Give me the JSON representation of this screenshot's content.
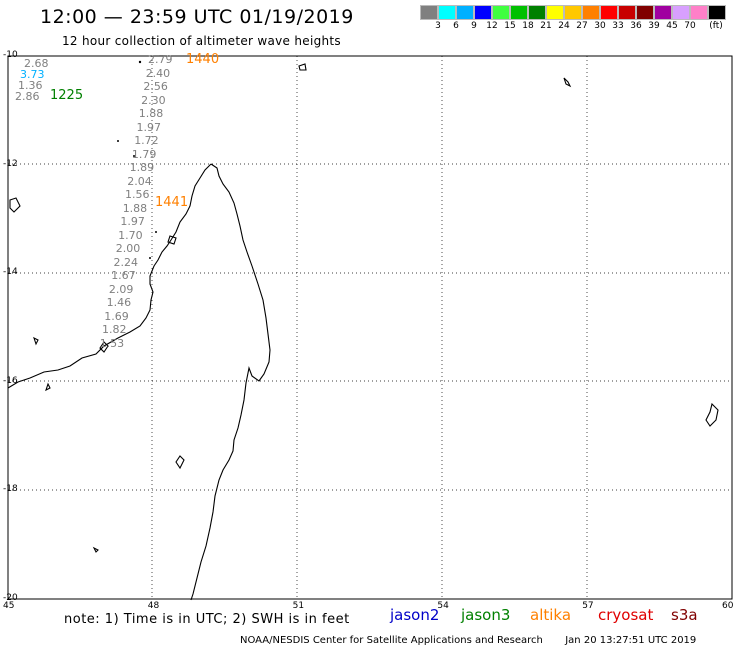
{
  "header": {
    "title": "12:00 — 23:59 UTC 01/19/2019",
    "subtitle": "12 hour collection of altimeter wave heights"
  },
  "colorbar": {
    "labels": [
      "3",
      "6",
      "9",
      "12",
      "15",
      "18",
      "21",
      "24",
      "27",
      "30",
      "33",
      "36",
      "39",
      "45",
      "70"
    ],
    "unit": "(ft)",
    "colors": [
      "#808080",
      "#00ffff",
      "#00b0ff",
      "#0000ff",
      "#40ff40",
      "#00c000",
      "#008000",
      "#ffff00",
      "#ffc800",
      "#ff8000",
      "#ff0000",
      "#c80000",
      "#800000",
      "#a000a0",
      "#d8a0ff",
      "#ff80c8",
      "#000000"
    ]
  },
  "axes": {
    "lon_ticks": [
      45,
      48,
      51,
      54,
      57,
      60
    ],
    "lat_ticks": [
      -10,
      -12,
      -14,
      -16,
      -18,
      -20
    ]
  },
  "observations": {
    "track_1225": {
      "time_label": "1225",
      "color": "#008000",
      "values": [
        "2.68",
        "3.73",
        "1.36",
        "2.86"
      ],
      "value_colors": [
        "#808080",
        "#00b0ff",
        "#808080",
        "#808080"
      ]
    },
    "track_1440": {
      "time_label": "1440",
      "color": "#ff8000",
      "values": [
        "2.79",
        "2.40",
        "2.56",
        "2.30",
        "1.88",
        "1.97",
        "1.72",
        "1.79",
        "1.89",
        "2.04",
        "1.56",
        "1.88",
        "1.97",
        "1.70",
        "2.00",
        "2.24",
        "1.67",
        "2.09",
        "1.46",
        "1.69",
        "1.82",
        "1.53"
      ]
    },
    "track_1441": {
      "time_label": "1441",
      "color": "#ff8000"
    },
    "value_color": "#808080"
  },
  "note": "note: 1) Time is in UTC; 2) SWH is in feet",
  "satellites": [
    {
      "name": "jason2",
      "color": "#0000c8"
    },
    {
      "name": "jason3",
      "color": "#008000"
    },
    {
      "name": "altika",
      "color": "#ff8000"
    },
    {
      "name": "cryosat",
      "color": "#e00000"
    },
    {
      "name": "s3a",
      "color": "#800000"
    }
  ],
  "footer": {
    "agency": "NOAA/NESDIS Center for Satellite Applications and Research",
    "timestamp": "Jan 20 13:27:51 UTC 2019"
  }
}
